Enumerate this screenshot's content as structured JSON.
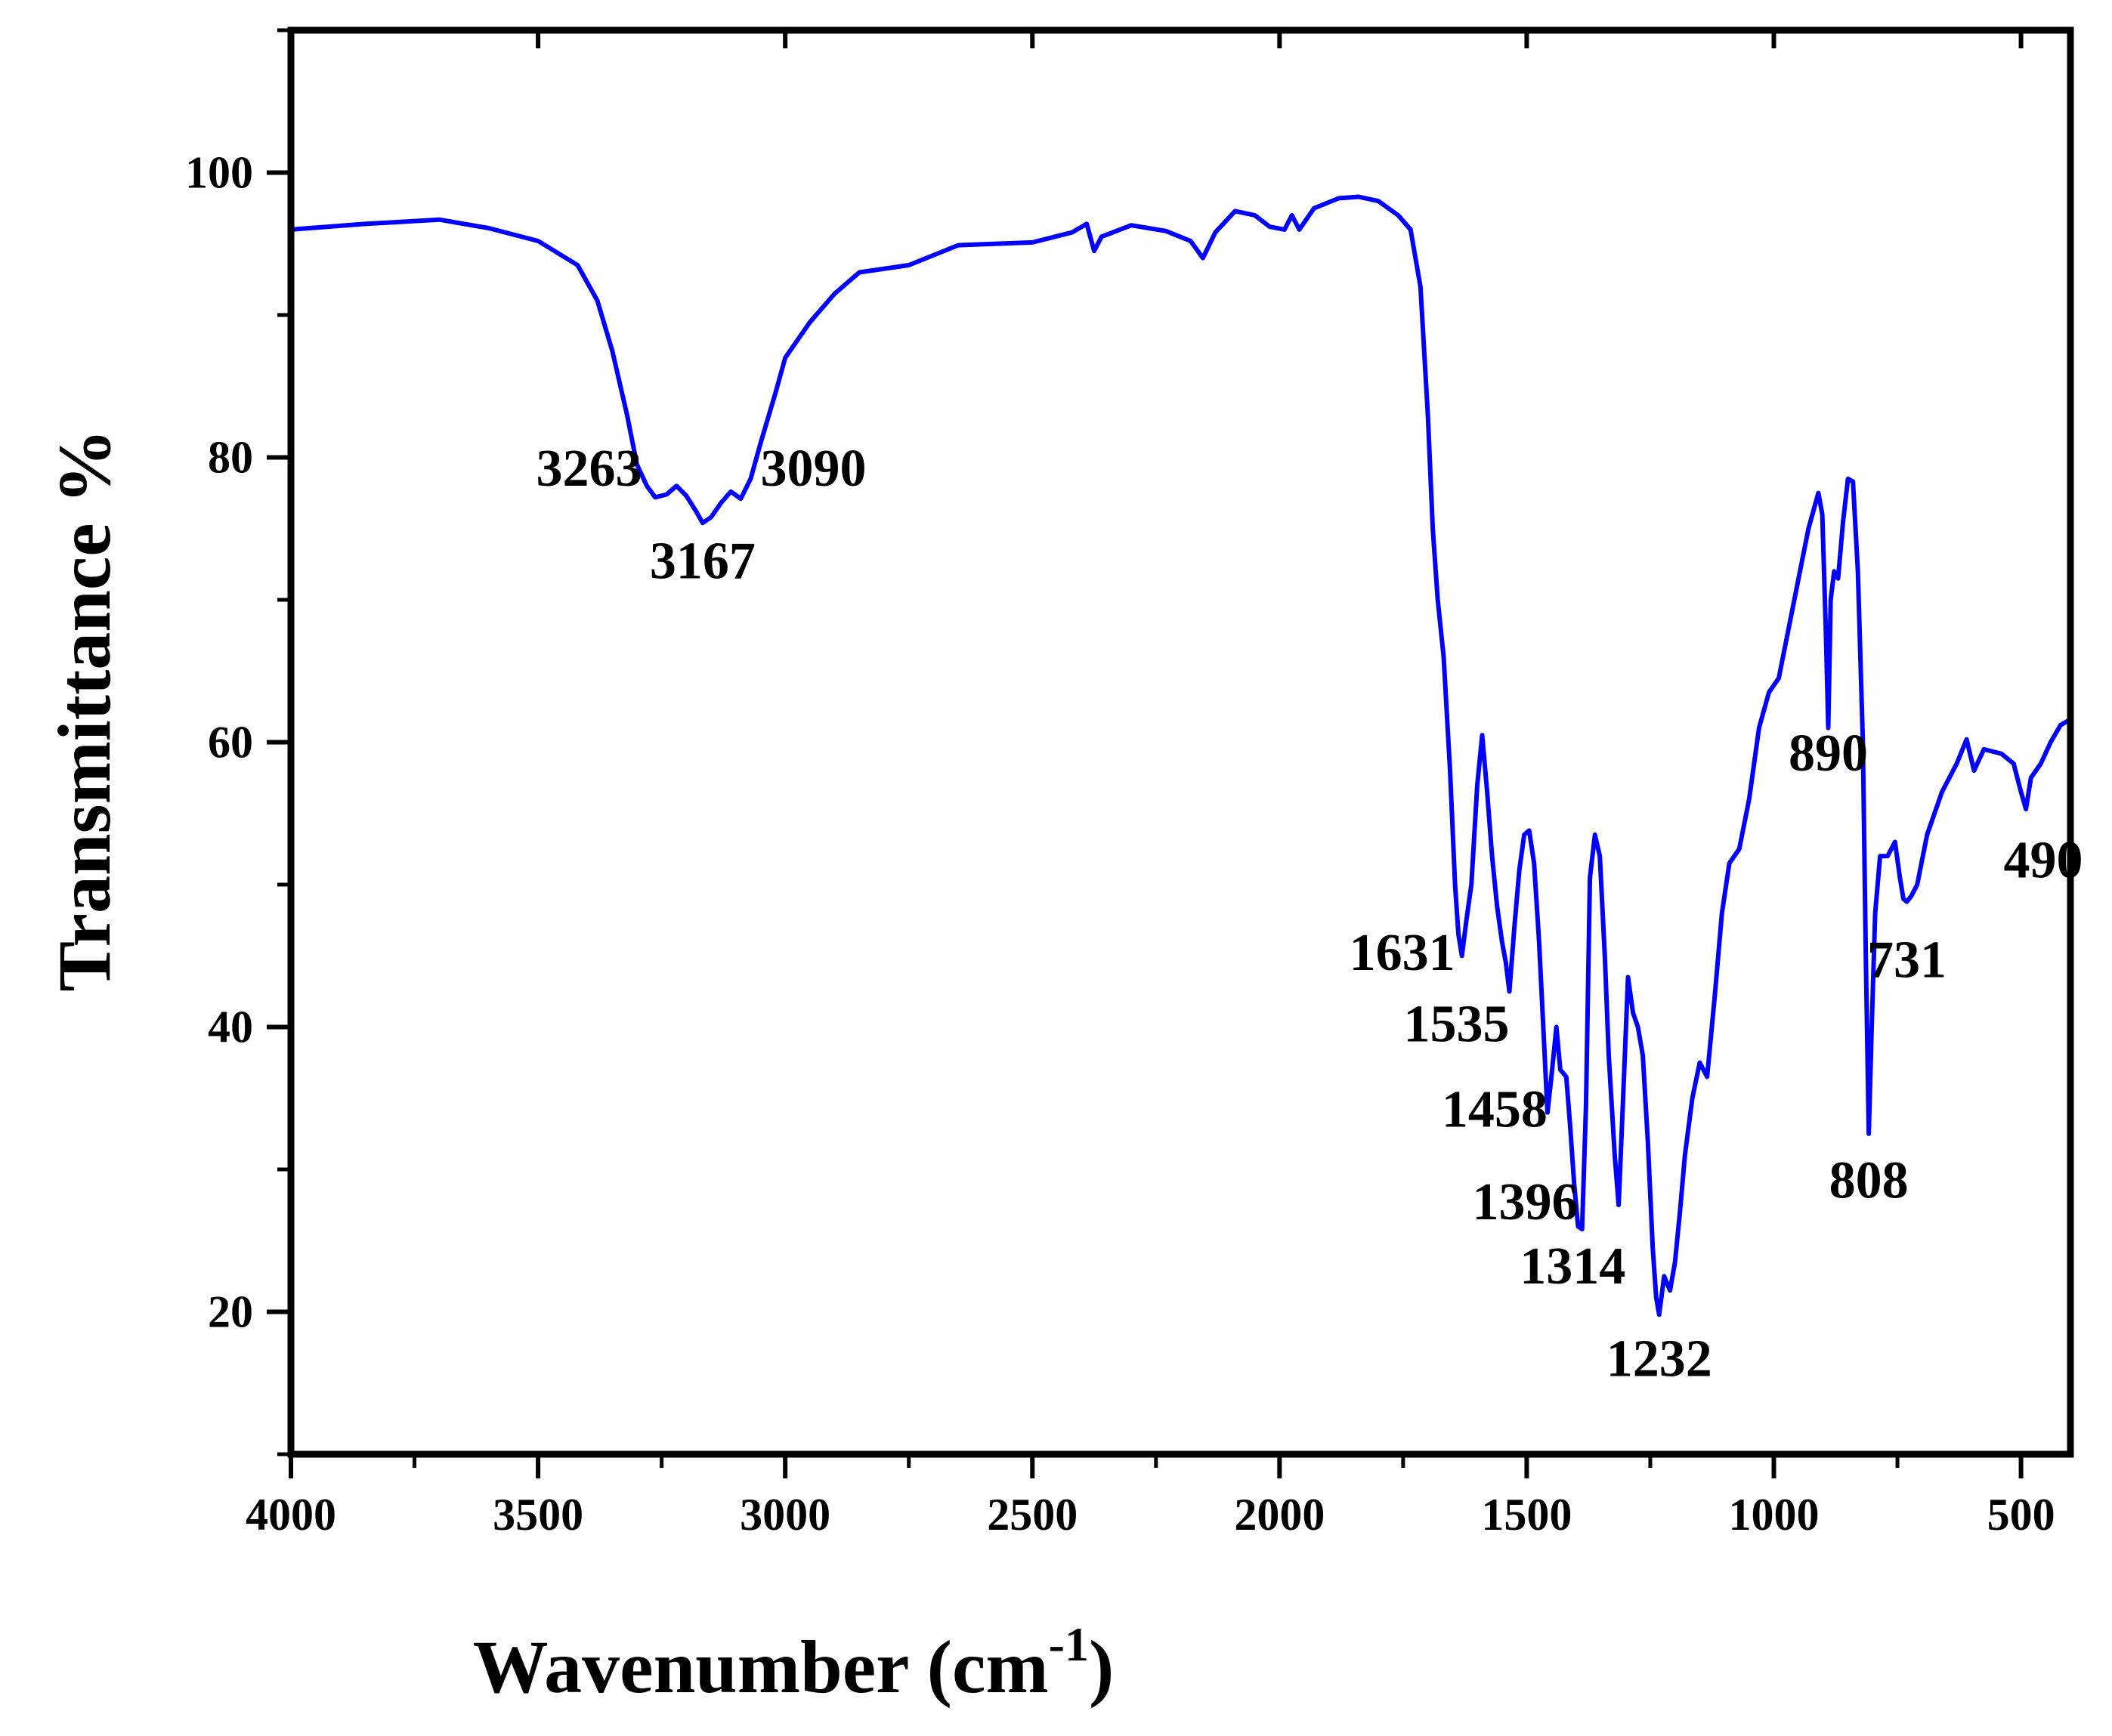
{
  "chart_data": {
    "type": "line",
    "title": "",
    "xlabel": "Wavenumber (cm",
    "xlabel_superscript": "-1",
    "xlabel_close": ")",
    "ylabel": "Transmittance %",
    "xlim": [
      4000,
      400
    ],
    "ylim": [
      10,
      110
    ],
    "x_ticks": [
      4000,
      3500,
      3000,
      2500,
      2000,
      1500,
      1000,
      500
    ],
    "y_ticks": [
      20,
      40,
      60,
      80,
      100
    ],
    "series_color": "#0000ff",
    "axis_color": "#000000",
    "series": [
      {
        "name": "FTIR spectrum",
        "points": [
          [
            4000,
            96.0
          ],
          [
            3850,
            96.4
          ],
          [
            3700,
            96.7
          ],
          [
            3600,
            96.1
          ],
          [
            3500,
            95.2
          ],
          [
            3420,
            93.5
          ],
          [
            3380,
            91.0
          ],
          [
            3350,
            87.5
          ],
          [
            3320,
            83.0
          ],
          [
            3300,
            79.5
          ],
          [
            3280,
            78.0
          ],
          [
            3263,
            77.2
          ],
          [
            3240,
            77.4
          ],
          [
            3220,
            78.0
          ],
          [
            3200,
            77.3
          ],
          [
            3180,
            76.2
          ],
          [
            3167,
            75.4
          ],
          [
            3150,
            75.8
          ],
          [
            3130,
            76.8
          ],
          [
            3110,
            77.6
          ],
          [
            3090,
            77.1
          ],
          [
            3070,
            78.5
          ],
          [
            3050,
            81.0
          ],
          [
            3020,
            84.5
          ],
          [
            3000,
            87.0
          ],
          [
            2950,
            89.5
          ],
          [
            2900,
            91.5
          ],
          [
            2850,
            93.0
          ],
          [
            2750,
            93.5
          ],
          [
            2650,
            94.9
          ],
          [
            2500,
            95.1
          ],
          [
            2420,
            95.8
          ],
          [
            2390,
            96.4
          ],
          [
            2375,
            94.5
          ],
          [
            2360,
            95.5
          ],
          [
            2300,
            96.3
          ],
          [
            2230,
            95.9
          ],
          [
            2180,
            95.2
          ],
          [
            2155,
            94.0
          ],
          [
            2130,
            95.8
          ],
          [
            2090,
            97.3
          ],
          [
            2050,
            97.0
          ],
          [
            2020,
            96.2
          ],
          [
            1990,
            96.0
          ],
          [
            1975,
            97.0
          ],
          [
            1960,
            96.0
          ],
          [
            1930,
            97.5
          ],
          [
            1880,
            98.2
          ],
          [
            1840,
            98.3
          ],
          [
            1800,
            98.0
          ],
          [
            1760,
            97.0
          ],
          [
            1735,
            96.0
          ],
          [
            1715,
            92.0
          ],
          [
            1700,
            83.0
          ],
          [
            1690,
            75.0
          ],
          [
            1680,
            70.0
          ],
          [
            1668,
            66.0
          ],
          [
            1655,
            58.0
          ],
          [
            1645,
            50.0
          ],
          [
            1638,
            46.5
          ],
          [
            1631,
            45.0
          ],
          [
            1622,
            47.5
          ],
          [
            1612,
            50.0
          ],
          [
            1600,
            57.0
          ],
          [
            1590,
            60.5
          ],
          [
            1580,
            56.5
          ],
          [
            1570,
            52.0
          ],
          [
            1560,
            48.5
          ],
          [
            1550,
            46.0
          ],
          [
            1542,
            44.5
          ],
          [
            1535,
            42.5
          ],
          [
            1525,
            47.0
          ],
          [
            1515,
            51.0
          ],
          [
            1505,
            53.5
          ],
          [
            1495,
            53.8
          ],
          [
            1485,
            51.5
          ],
          [
            1475,
            46.0
          ],
          [
            1465,
            39.0
          ],
          [
            1458,
            34.0
          ],
          [
            1450,
            36.5
          ],
          [
            1440,
            40.0
          ],
          [
            1432,
            37.0
          ],
          [
            1420,
            36.5
          ],
          [
            1412,
            33.0
          ],
          [
            1404,
            29.0
          ],
          [
            1396,
            26.0
          ],
          [
            1388,
            25.8
          ],
          [
            1380,
            34.5
          ],
          [
            1372,
            50.5
          ],
          [
            1362,
            53.5
          ],
          [
            1352,
            52.0
          ],
          [
            1342,
            45.0
          ],
          [
            1334,
            38.0
          ],
          [
            1322,
            31.0
          ],
          [
            1314,
            27.5
          ],
          [
            1305,
            35.0
          ],
          [
            1295,
            43.5
          ],
          [
            1285,
            41.0
          ],
          [
            1275,
            40.0
          ],
          [
            1265,
            38.0
          ],
          [
            1255,
            32.0
          ],
          [
            1245,
            24.5
          ],
          [
            1238,
            21.0
          ],
          [
            1232,
            19.8
          ],
          [
            1222,
            22.5
          ],
          [
            1210,
            21.5
          ],
          [
            1200,
            23.5
          ],
          [
            1190,
            27.0
          ],
          [
            1180,
            31.0
          ],
          [
            1165,
            35.0
          ],
          [
            1150,
            37.5
          ],
          [
            1135,
            36.5
          ],
          [
            1120,
            42.0
          ],
          [
            1105,
            48.0
          ],
          [
            1090,
            51.5
          ],
          [
            1070,
            52.5
          ],
          [
            1050,
            56.0
          ],
          [
            1030,
            61.0
          ],
          [
            1010,
            63.5
          ],
          [
            990,
            64.5
          ],
          [
            970,
            68.0
          ],
          [
            950,
            71.5
          ],
          [
            930,
            75.0
          ],
          [
            910,
            77.5
          ],
          [
            902,
            76.0
          ],
          [
            895,
            68.0
          ],
          [
            890,
            61.0
          ],
          [
            885,
            70.0
          ],
          [
            878,
            72.0
          ],
          [
            870,
            71.5
          ],
          [
            860,
            75.5
          ],
          [
            850,
            78.5
          ],
          [
            840,
            78.3
          ],
          [
            830,
            72.0
          ],
          [
            820,
            60.0
          ],
          [
            814,
            45.0
          ],
          [
            808,
            32.5
          ],
          [
            802,
            40.0
          ],
          [
            795,
            48.0
          ],
          [
            785,
            52.0
          ],
          [
            770,
            52.0
          ],
          [
            755,
            53.0
          ],
          [
            745,
            50.5
          ],
          [
            738,
            49.0
          ],
          [
            731,
            48.8
          ],
          [
            722,
            49.2
          ],
          [
            710,
            50.0
          ],
          [
            690,
            53.5
          ],
          [
            660,
            56.5
          ],
          [
            630,
            58.5
          ],
          [
            610,
            60.2
          ],
          [
            595,
            58.0
          ],
          [
            575,
            59.5
          ],
          [
            540,
            59.2
          ],
          [
            515,
            58.5
          ],
          [
            500,
            56.5
          ],
          [
            490,
            55.3
          ],
          [
            480,
            57.5
          ],
          [
            460,
            58.5
          ],
          [
            440,
            60.0
          ],
          [
            420,
            61.2
          ],
          [
            405,
            61.5
          ]
        ]
      }
    ],
    "annotations": [
      {
        "text": "3263",
        "x": 3290,
        "y": 78.0,
        "anchor": "end"
      },
      {
        "text": "3167",
        "x": 3167,
        "y": 71.5,
        "anchor": "middle"
      },
      {
        "text": "3090",
        "x": 3050,
        "y": 78.0,
        "anchor": "start"
      },
      {
        "text": "1631",
        "x": 1645,
        "y": 44.0,
        "anchor": "end"
      },
      {
        "text": "1535",
        "x": 1535,
        "y": 39.0,
        "anchor": "end"
      },
      {
        "text": "1458",
        "x": 1458,
        "y": 33.0,
        "anchor": "end"
      },
      {
        "text": "1396",
        "x": 1396,
        "y": 26.5,
        "anchor": "end"
      },
      {
        "text": "1314",
        "x": 1300,
        "y": 22.0,
        "anchor": "end"
      },
      {
        "text": "1232",
        "x": 1232,
        "y": 15.5,
        "anchor": "middle"
      },
      {
        "text": "890",
        "x": 890,
        "y": 58.0,
        "anchor": "middle"
      },
      {
        "text": "808",
        "x": 808,
        "y": 28.0,
        "anchor": "middle"
      },
      {
        "text": "731",
        "x": 731,
        "y": 43.5,
        "anchor": "middle"
      },
      {
        "text": "490",
        "x": 455,
        "y": 50.5,
        "anchor": "middle"
      }
    ]
  }
}
